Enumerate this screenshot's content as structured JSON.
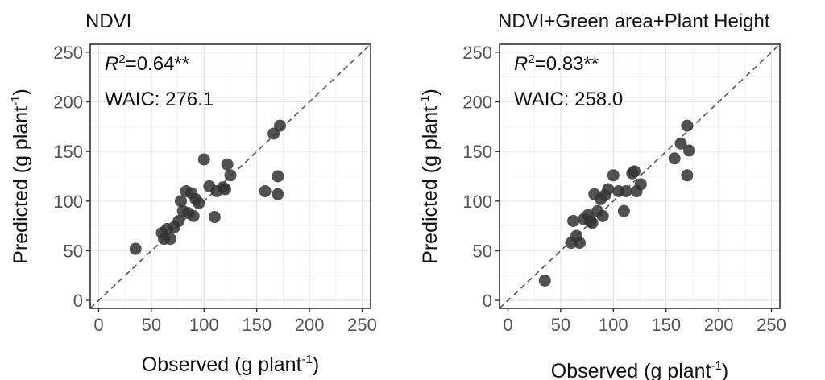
{
  "chart_data": [
    {
      "type": "scatter",
      "title": "NDVI",
      "xlabel": "Observed (g plant",
      "xlabel_sup": "-1",
      "xlabel_end": ")",
      "ylabel": "Predicted (g plant",
      "ylabel_sup": "-1",
      "ylabel_end": ")",
      "xlim": [
        -8,
        258
      ],
      "ylim": [
        -8,
        258
      ],
      "xticks": [
        0,
        50,
        100,
        150,
        200,
        250
      ],
      "yticks": [
        0,
        50,
        100,
        150,
        200,
        250
      ],
      "grid": true,
      "reference_line": "1:1",
      "annotations": {
        "r2_base": "R",
        "r2_sup": "2",
        "r2_value": "=0.64**",
        "waic": "WAIC: 276.1"
      },
      "points": [
        {
          "x": 35,
          "y": 52
        },
        {
          "x": 60,
          "y": 68
        },
        {
          "x": 62,
          "y": 62
        },
        {
          "x": 65,
          "y": 72
        },
        {
          "x": 68,
          "y": 62
        },
        {
          "x": 72,
          "y": 74
        },
        {
          "x": 76,
          "y": 80
        },
        {
          "x": 78,
          "y": 100
        },
        {
          "x": 80,
          "y": 90
        },
        {
          "x": 83,
          "y": 110
        },
        {
          "x": 85,
          "y": 88
        },
        {
          "x": 88,
          "y": 108
        },
        {
          "x": 90,
          "y": 85
        },
        {
          "x": 92,
          "y": 102
        },
        {
          "x": 95,
          "y": 98
        },
        {
          "x": 100,
          "y": 142
        },
        {
          "x": 105,
          "y": 115
        },
        {
          "x": 110,
          "y": 84
        },
        {
          "x": 112,
          "y": 110
        },
        {
          "x": 118,
          "y": 114
        },
        {
          "x": 120,
          "y": 112
        },
        {
          "x": 122,
          "y": 137
        },
        {
          "x": 125,
          "y": 126
        },
        {
          "x": 158,
          "y": 110
        },
        {
          "x": 166,
          "y": 168
        },
        {
          "x": 170,
          "y": 107
        },
        {
          "x": 170,
          "y": 125
        },
        {
          "x": 172,
          "y": 176
        }
      ]
    },
    {
      "type": "scatter",
      "title": "NDVI+Green area+Plant Height",
      "xlabel": "Observed (g plant",
      "xlabel_sup": "-1",
      "xlabel_end": ")",
      "ylabel": "Predicted (g plant",
      "ylabel_sup": "-1",
      "ylabel_end": ")",
      "xlim": [
        -8,
        258
      ],
      "ylim": [
        -8,
        258
      ],
      "xticks": [
        0,
        50,
        100,
        150,
        200,
        250
      ],
      "yticks": [
        0,
        50,
        100,
        150,
        200,
        250
      ],
      "grid": true,
      "reference_line": "1:1",
      "annotations": {
        "r2_base": "R",
        "r2_sup": "2",
        "r2_value": "=0.83**",
        "waic": "WAIC: 258.0"
      },
      "points": [
        {
          "x": 35,
          "y": 20
        },
        {
          "x": 60,
          "y": 58
        },
        {
          "x": 62,
          "y": 80
        },
        {
          "x": 65,
          "y": 65
        },
        {
          "x": 68,
          "y": 58
        },
        {
          "x": 72,
          "y": 82
        },
        {
          "x": 76,
          "y": 86
        },
        {
          "x": 78,
          "y": 80
        },
        {
          "x": 80,
          "y": 78
        },
        {
          "x": 82,
          "y": 107
        },
        {
          "x": 85,
          "y": 90
        },
        {
          "x": 88,
          "y": 102
        },
        {
          "x": 90,
          "y": 85
        },
        {
          "x": 92,
          "y": 106
        },
        {
          "x": 95,
          "y": 112
        },
        {
          "x": 100,
          "y": 126
        },
        {
          "x": 105,
          "y": 110
        },
        {
          "x": 110,
          "y": 90
        },
        {
          "x": 112,
          "y": 110
        },
        {
          "x": 118,
          "y": 128
        },
        {
          "x": 120,
          "y": 130
        },
        {
          "x": 122,
          "y": 110
        },
        {
          "x": 126,
          "y": 117
        },
        {
          "x": 158,
          "y": 143
        },
        {
          "x": 164,
          "y": 158
        },
        {
          "x": 170,
          "y": 126
        },
        {
          "x": 170,
          "y": 176
        },
        {
          "x": 172,
          "y": 151
        }
      ]
    }
  ]
}
